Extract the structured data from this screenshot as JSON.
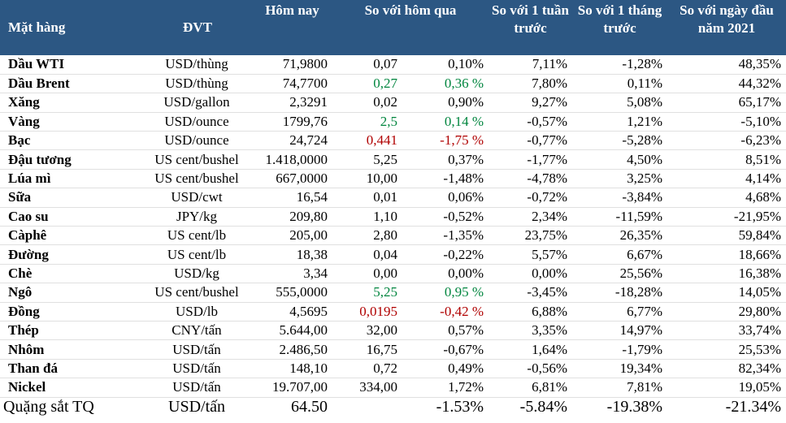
{
  "headers": [
    "Mặt hàng",
    "ĐVT",
    "Hôm nay",
    "So với hôm qua",
    "So với 1 tuần trước",
    "So với 1 tháng trước",
    "So với ngày đầu năm 2021"
  ],
  "colors": {
    "header_bg": "#2c5783",
    "up": "#00853e",
    "down": "#b00000"
  },
  "rows": [
    [
      "Dầu WTI",
      "USD/thùng",
      "71,9800",
      "0,07",
      "0,10%",
      "7,11%",
      "-1,28%",
      "48,35%"
    ],
    [
      "Dầu Brent",
      "USD/thùng",
      "74,7700",
      "0,27",
      "0,36 %",
      "7,80%",
      "0,11%",
      "44,32%"
    ],
    [
      "Xăng",
      "USD/gallon",
      "2,3291",
      "0,02",
      "0,90%",
      "9,27%",
      "5,08%",
      "65,17%"
    ],
    [
      "Vàng",
      "USD/ounce",
      "1799,76",
      "2,5",
      "0,14 %",
      "-0,57%",
      "1,21%",
      "-5,10%"
    ],
    [
      "Bạc",
      "USD/ounce",
      "24,724",
      "0,441",
      "-1,75 %",
      "-0,77%",
      "-5,28%",
      "-6,23%"
    ],
    [
      "Đậu tương",
      "US cent/bushel",
      "1.418,0000",
      "5,25",
      "0,37%",
      "-1,77%",
      "4,50%",
      "8,51%"
    ],
    [
      "Lúa mì",
      "US cent/bushel",
      "667,0000",
      "10,00",
      "-1,48%",
      "-4,78%",
      "3,25%",
      "4,14%"
    ],
    [
      "Sữa",
      "USD/cwt",
      "16,54",
      "0,01",
      "0,06%",
      "-0,72%",
      "-3,84%",
      "4,68%"
    ],
    [
      "Cao su",
      "JPY/kg",
      "209,80",
      "1,10",
      "-0,52%",
      "2,34%",
      "-11,59%",
      "-21,95%"
    ],
    [
      "Càphê",
      "US cent/lb",
      "205,00",
      "2,80",
      "-1,35%",
      "23,75%",
      "26,35%",
      "59,84%"
    ],
    [
      "Đường",
      "US cent/lb",
      "18,38",
      "0,04",
      "-0,22%",
      "5,57%",
      "6,67%",
      "18,66%"
    ],
    [
      "Chè",
      "USD/kg",
      "3,34",
      "0,00",
      "0,00%",
      "0,00%",
      "25,56%",
      "16,38%"
    ],
    [
      "Ngô",
      "US cent/bushel",
      "555,0000",
      "5,25",
      "0,95 %",
      "-3,45%",
      "-18,28%",
      "14,05%"
    ],
    [
      "Đồng",
      "USD/lb",
      "4,5695",
      "0,0195",
      "-0,42 %",
      "6,88%",
      "6,77%",
      "29,80%"
    ],
    [
      "Thép",
      "CNY/tấn",
      "5.644,00",
      "32,00",
      "0,57%",
      "3,35%",
      "14,97%",
      "33,74%"
    ],
    [
      "Nhôm",
      "USD/tấn",
      "2.486,50",
      "16,75",
      "-0,67%",
      "1,64%",
      "-1,79%",
      "25,53%"
    ],
    [
      "Than đá",
      "USD/tấn",
      "148,10",
      "0,72",
      "0,49%",
      "-0,56%",
      "19,34%",
      "82,34%"
    ],
    [
      "Nickel",
      "USD/tấn",
      "19.707,00",
      "334,00",
      "1,72%",
      "6,81%",
      "7,81%",
      "19,05%"
    ],
    [
      "Quặng sắt TQ",
      "USD/tấn",
      "64.50",
      "",
      "-1.53%",
      "-5.84%",
      "-19.38%",
      "-21.34%"
    ]
  ]
}
